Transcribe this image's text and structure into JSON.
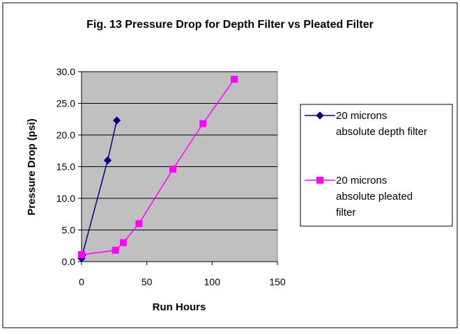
{
  "chart_data": {
    "type": "scatter",
    "title": "Fig. 13  Pressure Drop for Depth Filter vs Pleated Filter",
    "xlabel": "Run Hours",
    "ylabel": "Pressure Drop (psi)",
    "xlim": [
      0,
      150
    ],
    "ylim": [
      0,
      30
    ],
    "x_ticks": [
      "0",
      "50",
      "100",
      "150"
    ],
    "y_ticks": [
      "0.0",
      "5.0",
      "10.0",
      "15.0",
      "20.0",
      "25.0",
      "30.0"
    ],
    "grid": "horizontal",
    "plot_background": "#c0c0c0",
    "legend_position": "right",
    "series": [
      {
        "name_lines": [
          "20 microns",
          "absolute depth filter"
        ],
        "color": "#000080",
        "marker": "diamond",
        "points": [
          [
            0,
            0.5
          ],
          [
            0.5,
            1.0
          ],
          [
            20,
            16.0
          ],
          [
            27,
            22.3
          ]
        ]
      },
      {
        "name_lines": [
          "20 microns",
          "absolute pleated",
          "filter"
        ],
        "color": "#ff00ff",
        "marker": "square",
        "points": [
          [
            0,
            1.1
          ],
          [
            26,
            1.8
          ],
          [
            32,
            3.0
          ],
          [
            44,
            6.0
          ],
          [
            70,
            14.6
          ],
          [
            93,
            21.8
          ],
          [
            117,
            28.8
          ]
        ]
      }
    ]
  }
}
